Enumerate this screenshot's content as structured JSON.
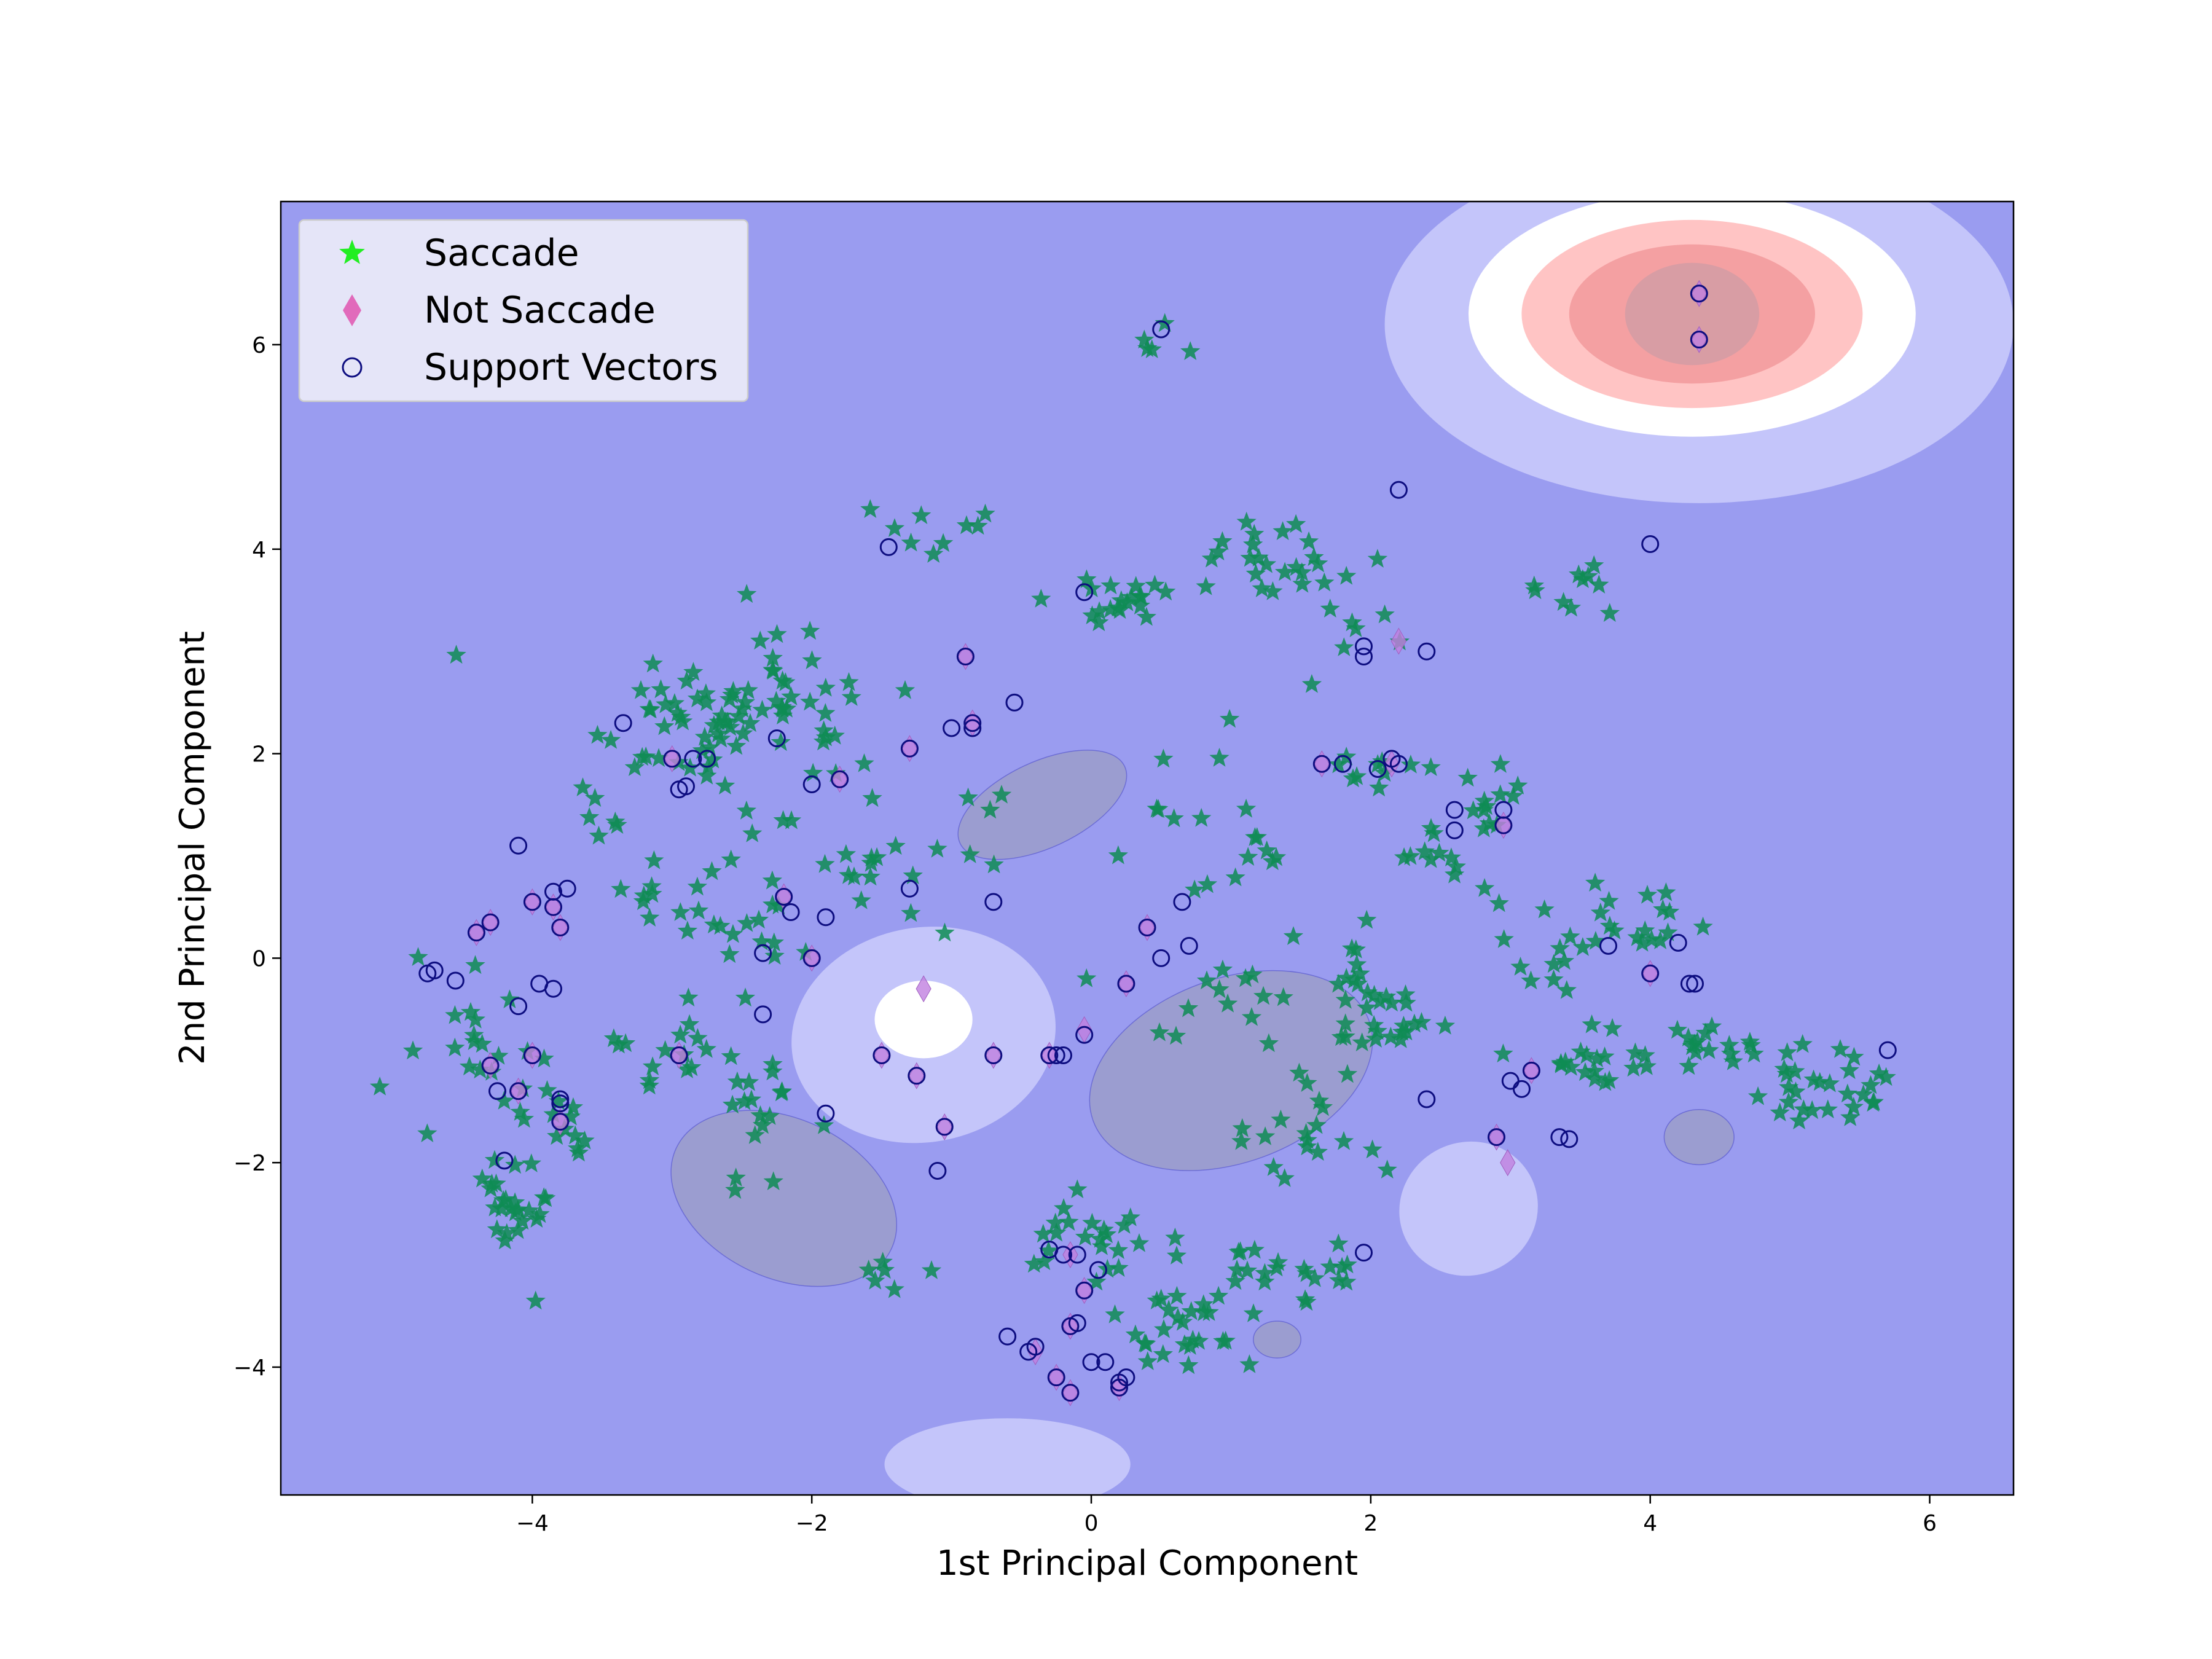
{
  "chart_data": {
    "type": "scatter",
    "title": "",
    "xlabel": "1st Principal Component",
    "ylabel": "2nd Principal Component",
    "xlim": [
      -5.8,
      6.6
    ],
    "ylim": [
      -5.25,
      7.4
    ],
    "xticks": [
      -4,
      -2,
      0,
      2,
      4,
      6
    ],
    "yticks": [
      -4,
      -2,
      0,
      2,
      4,
      6
    ],
    "xtick_labels": [
      "−4",
      "−2",
      "0",
      "2",
      "4",
      "6"
    ],
    "ytick_labels": [
      "−4",
      "−2",
      "0",
      "2",
      "4",
      "6"
    ],
    "grid": false,
    "legend_position": "top-left",
    "legend": [
      {
        "label": "Saccade",
        "marker": "star",
        "color": "#22ee22"
      },
      {
        "label": "Not Saccade",
        "marker": "diamond",
        "color": "#e055b0"
      },
      {
        "label": "Support Vectors",
        "marker": "circle-open",
        "color": "#0d0d80"
      }
    ],
    "colors": {
      "background": "#9a9cf0",
      "light_blue": "#c4c5fa",
      "white": "#ffffff",
      "pink": "#ffc4c4",
      "salmon": "#f4a0a2",
      "core": "#d89da4",
      "gray_blob": "#9b9dd0",
      "saccade": "#0e8c54",
      "not_saccade": "#c07fe0",
      "support_vector_edge": "#0d0d80"
    },
    "decision_regions": [
      {
        "kind": "ellipse",
        "cx": 4.35,
        "cy": 6.2,
        "rx": 2.25,
        "ry": 1.75,
        "fill": "light_blue"
      },
      {
        "kind": "ellipse",
        "cx": 4.3,
        "cy": 6.3,
        "rx": 1.6,
        "ry": 1.2,
        "fill": "white"
      },
      {
        "kind": "ellipse",
        "cx": 4.3,
        "cy": 6.3,
        "rx": 1.22,
        "ry": 0.92,
        "fill": "pink"
      },
      {
        "kind": "ellipse",
        "cx": 4.3,
        "cy": 6.3,
        "rx": 0.88,
        "ry": 0.68,
        "fill": "salmon"
      },
      {
        "kind": "ellipse",
        "cx": 4.3,
        "cy": 6.3,
        "rx": 0.48,
        "ry": 0.5,
        "fill": "core"
      },
      {
        "kind": "ellipse",
        "cx": -1.2,
        "cy": -0.75,
        "rx": 0.95,
        "ry": 1.05,
        "rot": -10,
        "fill": "light_blue"
      },
      {
        "kind": "ellipse",
        "cx": -1.2,
        "cy": -0.6,
        "rx": 0.35,
        "ry": 0.38,
        "fill": "white"
      },
      {
        "kind": "ellipse",
        "cx": 2.7,
        "cy": -2.45,
        "rx": 0.5,
        "ry": 0.65,
        "rot": -25,
        "fill": "light_blue"
      },
      {
        "kind": "ellipse",
        "cx": -0.6,
        "cy": -4.95,
        "rx": 0.88,
        "ry": 0.45,
        "fill": "light_blue"
      },
      {
        "kind": "ellipse",
        "cx": -0.35,
        "cy": 1.5,
        "rx": 0.65,
        "ry": 0.42,
        "rot": -25,
        "fill": "gray_blob"
      },
      {
        "kind": "ellipse",
        "cx": -2.2,
        "cy": -2.35,
        "rx": 0.85,
        "ry": 0.78,
        "rot": 25,
        "fill": "gray_blob"
      },
      {
        "kind": "ellipse",
        "cx": 1.0,
        "cy": -1.1,
        "rx": 1.05,
        "ry": 0.9,
        "rot": -20,
        "fill": "gray_blob"
      },
      {
        "kind": "ellipse",
        "cx": 4.35,
        "cy": -1.75,
        "rx": 0.25,
        "ry": 0.27,
        "fill": "gray_blob"
      },
      {
        "kind": "ellipse",
        "cx": 1.33,
        "cy": -3.73,
        "rx": 0.17,
        "ry": 0.18,
        "fill": "gray_blob"
      }
    ],
    "series": [
      {
        "name": "Saccade",
        "clusters": [
          {
            "x": -2.5,
            "y": 2.45,
            "sx": 0.5,
            "sy": 0.35,
            "n": 70
          },
          {
            "x": -3.0,
            "y": 2.2,
            "sx": 0.25,
            "sy": 0.2,
            "n": 10
          },
          {
            "x": -1.2,
            "y": 4.25,
            "sx": 0.3,
            "sy": 0.15,
            "n": 9
          },
          {
            "x": 0.4,
            "y": 5.95,
            "sx": 0.12,
            "sy": 0.1,
            "n": 5
          },
          {
            "x": 0.2,
            "y": 3.5,
            "sx": 0.25,
            "sy": 0.15,
            "n": 20
          },
          {
            "x": 1.3,
            "y": 3.9,
            "sx": 0.35,
            "sy": 0.22,
            "n": 22
          },
          {
            "x": 3.6,
            "y": 3.55,
            "sx": 0.3,
            "sy": 0.22,
            "n": 10
          },
          {
            "x": 2.1,
            "y": 1.85,
            "sx": 0.2,
            "sy": 0.12,
            "n": 10
          },
          {
            "x": 2.9,
            "y": 1.6,
            "sx": 0.12,
            "sy": 0.18,
            "n": 12
          },
          {
            "x": 2.5,
            "y": 1.0,
            "sx": 0.15,
            "sy": 0.12,
            "n": 10
          },
          {
            "x": 3.9,
            "y": 0.35,
            "sx": 0.3,
            "sy": 0.25,
            "n": 20
          },
          {
            "x": 4.4,
            "y": -0.85,
            "sx": 0.2,
            "sy": 0.1,
            "n": 15
          },
          {
            "x": 5.2,
            "y": -1.25,
            "sx": 0.3,
            "sy": 0.2,
            "n": 30
          },
          {
            "x": 3.6,
            "y": -1.0,
            "sx": 0.18,
            "sy": 0.15,
            "n": 20
          },
          {
            "x": 1.9,
            "y": -0.2,
            "sx": 0.08,
            "sy": 0.25,
            "n": 15
          },
          {
            "x": 2.2,
            "y": -0.7,
            "sx": 0.2,
            "sy": 0.2,
            "n": 18
          },
          {
            "x": 1.65,
            "y": -1.6,
            "sx": 0.3,
            "sy": 0.3,
            "n": 20
          },
          {
            "x": 1.5,
            "y": -3.05,
            "sx": 0.3,
            "sy": 0.18,
            "n": 22
          },
          {
            "x": 0.6,
            "y": -3.6,
            "sx": 0.28,
            "sy": 0.35,
            "n": 28
          },
          {
            "x": 0.0,
            "y": -2.8,
            "sx": 0.3,
            "sy": 0.2,
            "n": 22
          },
          {
            "x": -4.2,
            "y": -2.4,
            "sx": 0.15,
            "sy": 0.25,
            "n": 25
          },
          {
            "x": -4.5,
            "y": -0.9,
            "sx": 0.3,
            "sy": 0.4,
            "n": 20
          },
          {
            "x": -3.9,
            "y": -1.5,
            "sx": 0.2,
            "sy": 0.35,
            "n": 15
          },
          {
            "x": -3.1,
            "y": -0.9,
            "sx": 0.2,
            "sy": 0.25,
            "n": 15
          },
          {
            "x": -2.3,
            "y": -1.5,
            "sx": 0.2,
            "sy": 0.3,
            "n": 18
          },
          {
            "x": -1.9,
            "y": 1.1,
            "sx": 0.3,
            "sy": 0.4,
            "n": 14
          },
          {
            "x": -2.4,
            "y": 0.4,
            "sx": 0.25,
            "sy": 0.3,
            "n": 14
          },
          {
            "x": -3.0,
            "y": 0.4,
            "sx": 0.2,
            "sy": 0.3,
            "n": 12
          },
          {
            "x": -1.0,
            "y": 0.9,
            "sx": 0.35,
            "sy": 0.3,
            "n": 12
          },
          {
            "x": 0.9,
            "y": -0.3,
            "sx": 0.3,
            "sy": 0.3,
            "n": 14
          },
          {
            "x": -1.4,
            "y": -3.15,
            "sx": 0.15,
            "sy": 0.1,
            "n": 6
          },
          {
            "x": 0.6,
            "y": 1.5,
            "sx": 0.3,
            "sy": 0.4,
            "n": 10
          },
          {
            "x": 1.0,
            "y": 1.0,
            "sx": 0.3,
            "sy": 0.3,
            "n": 8
          },
          {
            "x": 3.2,
            "y": 0.0,
            "sx": 0.25,
            "sy": 0.4,
            "n": 10
          },
          {
            "x": 2.0,
            "y": 3.2,
            "sx": 0.3,
            "sy": 0.5,
            "n": 10
          },
          {
            "x": -3.6,
            "y": 1.4,
            "sx": 0.2,
            "sy": 0.2,
            "n": 6
          }
        ]
      },
      {
        "name": "Not Saccade",
        "points": [
          [
            4.35,
            6.5
          ],
          [
            4.35,
            6.05
          ],
          [
            -0.9,
            2.95
          ],
          [
            2.2,
            3.1
          ],
          [
            -1.3,
            2.05
          ],
          [
            -1.8,
            1.75
          ],
          [
            -3.0,
            1.95
          ],
          [
            -2.95,
            -0.95
          ],
          [
            -4.0,
            0.55
          ],
          [
            -3.85,
            0.5
          ],
          [
            -3.8,
            0.3
          ],
          [
            -4.3,
            0.35
          ],
          [
            -4.4,
            0.25
          ],
          [
            -4.0,
            -0.95
          ],
          [
            -4.3,
            -1.05
          ],
          [
            -4.1,
            -1.3
          ],
          [
            -3.8,
            -1.6
          ],
          [
            -2.2,
            0.6
          ],
          [
            -2.0,
            0.0
          ],
          [
            -1.2,
            -0.3
          ],
          [
            -1.5,
            -0.95
          ],
          [
            -1.25,
            -1.15
          ],
          [
            -1.05,
            -1.65
          ],
          [
            -0.7,
            -0.95
          ],
          [
            -0.3,
            -0.95
          ],
          [
            -0.05,
            -0.7
          ],
          [
            0.25,
            -0.25
          ],
          [
            0.4,
            0.3
          ],
          [
            -0.85,
            2.3
          ],
          [
            1.65,
            1.9
          ],
          [
            2.15,
            1.9
          ],
          [
            2.95,
            1.3
          ],
          [
            4.0,
            -0.15
          ],
          [
            3.15,
            -1.1
          ],
          [
            2.9,
            -1.75
          ],
          [
            2.98,
            -2.0
          ],
          [
            -0.15,
            -2.9
          ],
          [
            -0.05,
            -3.25
          ],
          [
            -0.15,
            -3.6
          ],
          [
            -0.4,
            -3.85
          ],
          [
            -0.25,
            -4.1
          ],
          [
            -0.15,
            -4.25
          ],
          [
            0.2,
            -4.2
          ]
        ]
      },
      {
        "name": "Support Vectors",
        "points": [
          [
            0.5,
            6.15
          ],
          [
            2.2,
            4.58
          ],
          [
            4.0,
            4.05
          ],
          [
            -1.45,
            4.02
          ],
          [
            -0.05,
            3.58
          ],
          [
            1.95,
            3.05
          ],
          [
            1.95,
            2.95
          ],
          [
            2.4,
            3.0
          ],
          [
            -0.55,
            2.5
          ],
          [
            -1.0,
            2.25
          ],
          [
            -0.85,
            2.25
          ],
          [
            -0.85,
            2.3
          ],
          [
            -0.9,
            2.95
          ],
          [
            -2.25,
            2.15
          ],
          [
            -3.35,
            2.3
          ],
          [
            -2.85,
            1.95
          ],
          [
            -2.75,
            1.95
          ],
          [
            -3.0,
            1.95
          ],
          [
            -2.95,
            1.65
          ],
          [
            -2.9,
            1.68
          ],
          [
            -2.0,
            1.7
          ],
          [
            -1.3,
            2.05
          ],
          [
            -1.8,
            1.75
          ],
          [
            1.65,
            1.9
          ],
          [
            1.8,
            1.9
          ],
          [
            2.05,
            1.85
          ],
          [
            2.15,
            1.95
          ],
          [
            2.2,
            1.9
          ],
          [
            2.6,
            1.45
          ],
          [
            2.6,
            1.25
          ],
          [
            2.95,
            1.45
          ],
          [
            2.95,
            1.3
          ],
          [
            -4.1,
            1.1
          ],
          [
            -3.85,
            0.65
          ],
          [
            -3.75,
            0.68
          ],
          [
            -4.0,
            0.55
          ],
          [
            -3.85,
            0.5
          ],
          [
            -3.8,
            0.3
          ],
          [
            -4.3,
            0.35
          ],
          [
            -4.4,
            0.25
          ],
          [
            -2.2,
            0.6
          ],
          [
            -2.15,
            0.45
          ],
          [
            -1.9,
            0.4
          ],
          [
            -1.3,
            0.68
          ],
          [
            -0.7,
            0.55
          ],
          [
            0.65,
            0.55
          ],
          [
            -2.35,
            0.05
          ],
          [
            -2.0,
            0.0
          ],
          [
            0.5,
            0.0
          ],
          [
            0.7,
            0.12
          ],
          [
            0.4,
            0.3
          ],
          [
            0.25,
            -0.25
          ],
          [
            -4.7,
            -0.12
          ],
          [
            -4.75,
            -0.15
          ],
          [
            -4.55,
            -0.22
          ],
          [
            -3.95,
            -0.25
          ],
          [
            -3.85,
            -0.3
          ],
          [
            -4.1,
            -0.47
          ],
          [
            -2.35,
            -0.55
          ],
          [
            -0.05,
            -0.75
          ],
          [
            -0.2,
            -0.95
          ],
          [
            -0.25,
            -0.95
          ],
          [
            -0.3,
            -0.95
          ],
          [
            -0.7,
            -0.95
          ],
          [
            -1.5,
            -0.95
          ],
          [
            -1.25,
            -1.15
          ],
          [
            -2.95,
            -0.95
          ],
          [
            -4.0,
            -0.95
          ],
          [
            -4.3,
            -1.05
          ],
          [
            -4.25,
            -1.3
          ],
          [
            -4.1,
            -1.3
          ],
          [
            -3.8,
            -1.38
          ],
          [
            -3.8,
            -1.42
          ],
          [
            -3.8,
            -1.6
          ],
          [
            -1.9,
            -1.52
          ],
          [
            -1.05,
            -1.65
          ],
          [
            -1.1,
            -2.08
          ],
          [
            -4.2,
            -1.98
          ],
          [
            2.4,
            -1.38
          ],
          [
            3.0,
            -1.2
          ],
          [
            3.08,
            -1.28
          ],
          [
            3.15,
            -1.1
          ],
          [
            3.35,
            -1.75
          ],
          [
            3.42,
            -1.77
          ],
          [
            2.9,
            -1.75
          ],
          [
            3.7,
            0.12
          ],
          [
            4.2,
            0.15
          ],
          [
            4.28,
            -0.25
          ],
          [
            4.32,
            -0.25
          ],
          [
            4.0,
            -0.15
          ],
          [
            5.7,
            -0.9
          ],
          [
            1.95,
            -2.88
          ],
          [
            0.05,
            -3.05
          ],
          [
            -0.2,
            -2.9
          ],
          [
            -0.1,
            -2.9
          ],
          [
            -0.05,
            -3.25
          ],
          [
            -0.3,
            -2.85
          ],
          [
            -0.6,
            -3.7
          ],
          [
            -0.4,
            -3.8
          ],
          [
            -0.45,
            -3.85
          ],
          [
            -0.15,
            -3.6
          ],
          [
            -0.1,
            -3.57
          ],
          [
            0.0,
            -3.95
          ],
          [
            0.1,
            -3.95
          ],
          [
            0.2,
            -4.15
          ],
          [
            0.25,
            -4.1
          ],
          [
            -0.25,
            -4.1
          ],
          [
            -0.15,
            -4.25
          ],
          [
            0.2,
            -4.2
          ],
          [
            4.35,
            6.5
          ],
          [
            4.35,
            6.05
          ]
        ]
      }
    ]
  }
}
